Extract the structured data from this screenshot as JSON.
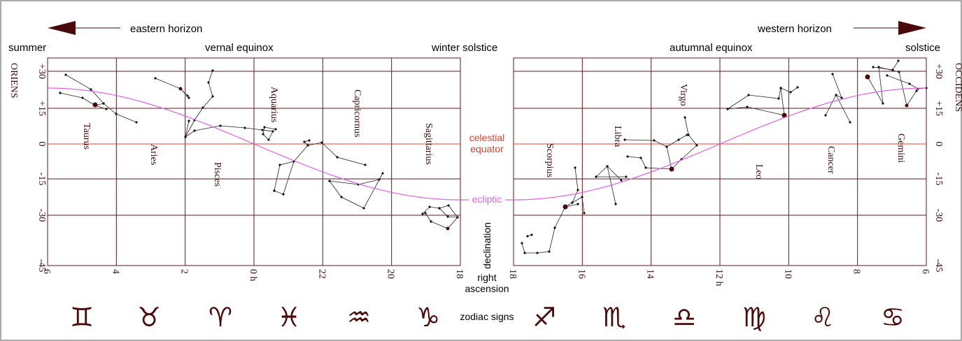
{
  "header": {
    "eastern_horizon": "eastern horizon",
    "western_horizon": "western horizon",
    "summer": "summer",
    "vernal_equinox": "vernal equinox",
    "winter_solstice": "winter solstice",
    "autumnal_equinox": "autumnal equinox",
    "solstice": "solstice"
  },
  "side_labels": {
    "oriens": "ORIENS",
    "occidens": "OCCIDENS"
  },
  "center_labels": {
    "celestial_equator_line1": "celestial",
    "celestial_equator_line2": "equator",
    "ecliptic": "ecliptic",
    "declination": "declination",
    "right_ascension_line1": "right",
    "right_ascension_line2": "ascension",
    "zodiac_signs": "zodiac signs"
  },
  "declination_ticks": {
    "left": [
      "+30",
      "+15",
      "0",
      "-15",
      "-30",
      "-45"
    ],
    "right": [
      "+30",
      "+15",
      "0",
      "-15",
      "-30",
      "-45"
    ]
  },
  "ra_ticks": {
    "left": [
      "6",
      "4",
      "2",
      "0 h",
      "22",
      "20",
      "18"
    ],
    "right": [
      "18",
      "16",
      "14",
      "12 h",
      "10",
      "8",
      "6"
    ]
  },
  "constellations": {
    "left": [
      "Taurus",
      "Aries",
      "Pisces",
      "Aquarius",
      "Capricornus",
      "Sagittarius"
    ],
    "right": [
      "Scorpius",
      "Libra",
      "Virgo",
      "Leo",
      "Cancer",
      "Gemini"
    ]
  },
  "zodiac": {
    "left": [
      {
        "name": "gemini",
        "glyph": "♊"
      },
      {
        "name": "taurus",
        "glyph": "♉"
      },
      {
        "name": "aries",
        "glyph": "♈"
      },
      {
        "name": "pisces",
        "glyph": "♓"
      },
      {
        "name": "aquarius",
        "glyph": "♒"
      },
      {
        "name": "capricorn",
        "glyph": "♑"
      }
    ],
    "right": [
      {
        "name": "sagittarius",
        "glyph": "♐"
      },
      {
        "name": "scorpio",
        "glyph": "♏"
      },
      {
        "name": "libra",
        "glyph": "♎"
      },
      {
        "name": "virgo",
        "glyph": "♍"
      },
      {
        "name": "leo",
        "glyph": "♌"
      },
      {
        "name": "cancer",
        "glyph": "♋"
      }
    ]
  },
  "colors": {
    "grid": "#5a1a1a",
    "text": "#3a0a0a",
    "equator": "#e0402a",
    "ecliptic": "#e060e0",
    "arrow": "#4a0a0a"
  }
}
